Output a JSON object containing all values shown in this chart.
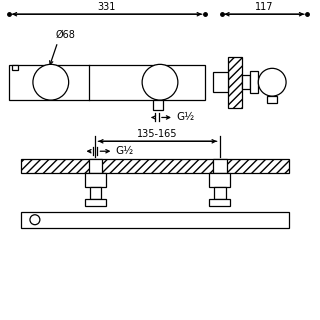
{
  "bg_color": "#ffffff",
  "line_color": "#000000",
  "dim_331_label": "331",
  "dim_117_label": "117",
  "dim_68_label": "Ø68",
  "g_half_label": "G½",
  "dim_135_165_label": "135-165"
}
